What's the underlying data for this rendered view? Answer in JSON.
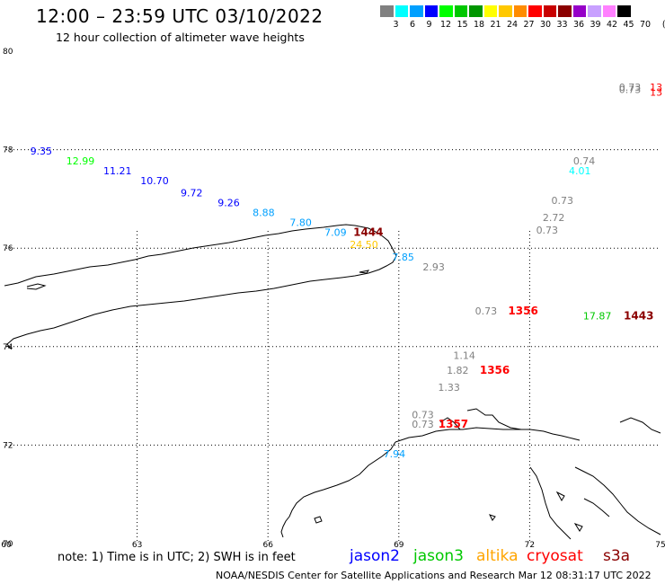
{
  "title": "12:00 – 23:59 UTC 03/10/2022",
  "subtitle": "12 hour collection of altimeter wave heights",
  "legend": {
    "colors": [
      "#808080",
      "#00ffff",
      "#00a0ff",
      "#0000ff",
      "#00ff00",
      "#00c800",
      "#009600",
      "#ffff00",
      "#ffc800",
      "#ff8c00",
      "#ff0000",
      "#c80000",
      "#8b0000",
      "#9600c8",
      "#c8a0ff",
      "#ff80ff",
      "#000000"
    ],
    "ticks": [
      "3",
      "6",
      "9",
      "12",
      "15",
      "18",
      "21",
      "24",
      "27",
      "30",
      "33",
      "36",
      "39",
      "42",
      "45",
      "70"
    ],
    "unit": "(ft)"
  },
  "axes": {
    "lon": {
      "min": 60,
      "max": 75,
      "ticks": [
        "60",
        "63",
        "66",
        "69",
        "72",
        "75"
      ]
    },
    "lat": {
      "min": 70,
      "max": 80,
      "ticks": [
        "80",
        "78",
        "76",
        "74",
        "72",
        "70"
      ]
    }
  },
  "observations": [
    {
      "text": "0.73",
      "lon": 74.3,
      "lat": 79.2,
      "color": "#808080",
      "sat": "unknown"
    },
    {
      "text": "0.73",
      "lon": 74.3,
      "lat": 79.15,
      "color": "#808080",
      "sat": "unknown"
    },
    {
      "text": "13",
      "lon": 74.9,
      "lat": 79.2,
      "color": "#ff0000",
      "sat": "cryosat"
    },
    {
      "text": "13",
      "lon": 74.9,
      "lat": 79.1,
      "color": "#ff0000",
      "sat": "cryosat"
    },
    {
      "text": "9.35",
      "lon": 60.8,
      "lat": 77.9,
      "color": "#0000ff",
      "sat": "jason2"
    },
    {
      "text": "12.99",
      "lon": 61.7,
      "lat": 77.7,
      "color": "#00ff00",
      "sat": "jason3"
    },
    {
      "text": "11.21",
      "lon": 62.55,
      "lat": 77.5,
      "color": "#0000ff",
      "sat": "jason2"
    },
    {
      "text": "10.70",
      "lon": 63.4,
      "lat": 77.3,
      "color": "#0000ff",
      "sat": "jason2"
    },
    {
      "text": "9.72",
      "lon": 64.25,
      "lat": 77.05,
      "color": "#0000ff",
      "sat": "jason2"
    },
    {
      "text": "9.26",
      "lon": 65.1,
      "lat": 76.85,
      "color": "#0000ff",
      "sat": "jason2"
    },
    {
      "text": "8.88",
      "lon": 65.9,
      "lat": 76.65,
      "color": "#00a0ff",
      "sat": "jason2"
    },
    {
      "text": "7.80",
      "lon": 66.75,
      "lat": 76.45,
      "color": "#00a0ff",
      "sat": "jason2"
    },
    {
      "text": "7.09",
      "lon": 67.55,
      "lat": 76.25,
      "color": "#00a0ff",
      "sat": "jason2"
    },
    {
      "text": "1444",
      "lon": 68.3,
      "lat": 76.25,
      "color": "#8b0000",
      "sat": "s3a"
    },
    {
      "text": "24.50",
      "lon": 68.2,
      "lat": 76.0,
      "color": "#ffc800",
      "sat": "altika"
    },
    {
      "text": "7.85",
      "lon": 69.1,
      "lat": 75.75,
      "color": "#00a0ff",
      "sat": "jason2"
    },
    {
      "text": "2.93",
      "lon": 69.8,
      "lat": 75.55,
      "color": "#808080",
      "sat": "unknown"
    },
    {
      "text": "0.74",
      "lon": 73.25,
      "lat": 77.7,
      "color": "#808080",
      "sat": "unknown"
    },
    {
      "text": "4.01",
      "lon": 73.15,
      "lat": 77.5,
      "color": "#00ffff",
      "sat": "jason2"
    },
    {
      "text": "0.73",
      "lon": 72.75,
      "lat": 76.9,
      "color": "#808080",
      "sat": "unknown"
    },
    {
      "text": "2.72",
      "lon": 72.55,
      "lat": 76.55,
      "color": "#808080",
      "sat": "unknown"
    },
    {
      "text": "0.73",
      "lon": 72.4,
      "lat": 76.3,
      "color": "#808080",
      "sat": "unknown"
    },
    {
      "text": "0.73",
      "lon": 71.0,
      "lat": 74.65,
      "color": "#808080",
      "sat": "unknown"
    },
    {
      "text": "1356",
      "lon": 71.85,
      "lat": 74.65,
      "color": "#ff0000",
      "sat": "cryosat"
    },
    {
      "text": "17.87",
      "lon": 73.55,
      "lat": 74.55,
      "color": "#00c800",
      "sat": "jason3"
    },
    {
      "text": "1443",
      "lon": 74.5,
      "lat": 74.55,
      "color": "#8b0000",
      "sat": "s3a"
    },
    {
      "text": "1.14",
      "lon": 70.5,
      "lat": 73.75,
      "color": "#808080",
      "sat": "unknown"
    },
    {
      "text": "1.82",
      "lon": 70.35,
      "lat": 73.45,
      "color": "#808080",
      "sat": "unknown"
    },
    {
      "text": "1356",
      "lon": 71.2,
      "lat": 73.45,
      "color": "#ff0000",
      "sat": "cryosat"
    },
    {
      "text": "1.33",
      "lon": 70.15,
      "lat": 73.1,
      "color": "#808080",
      "sat": "unknown"
    },
    {
      "text": "0.73",
      "lon": 69.55,
      "lat": 72.55,
      "color": "#808080",
      "sat": "unknown"
    },
    {
      "text": "0.73",
      "lon": 69.55,
      "lat": 72.35,
      "color": "#808080",
      "sat": "unknown"
    },
    {
      "text": "1357",
      "lon": 70.25,
      "lat": 72.35,
      "color": "#ff0000",
      "sat": "cryosat"
    },
    {
      "text": "7.94",
      "lon": 68.9,
      "lat": 71.75,
      "color": "#00a0ff",
      "sat": "jason2"
    }
  ],
  "note": "note: 1) Time is in UTC; 2) SWH is in feet",
  "satellites": [
    {
      "name": "jason2",
      "color": "#0000ff"
    },
    {
      "name": "jason3",
      "color": "#00c800"
    },
    {
      "name": "altika",
      "color": "#ffa500"
    },
    {
      "name": "cryosat",
      "color": "#ff0000"
    },
    {
      "name": "s3a",
      "color": "#8b0000"
    }
  ],
  "footer": "NOAA/NESDIS Center for Satellite Applications and Research   Mar 12 08:31:17 UTC 2022"
}
